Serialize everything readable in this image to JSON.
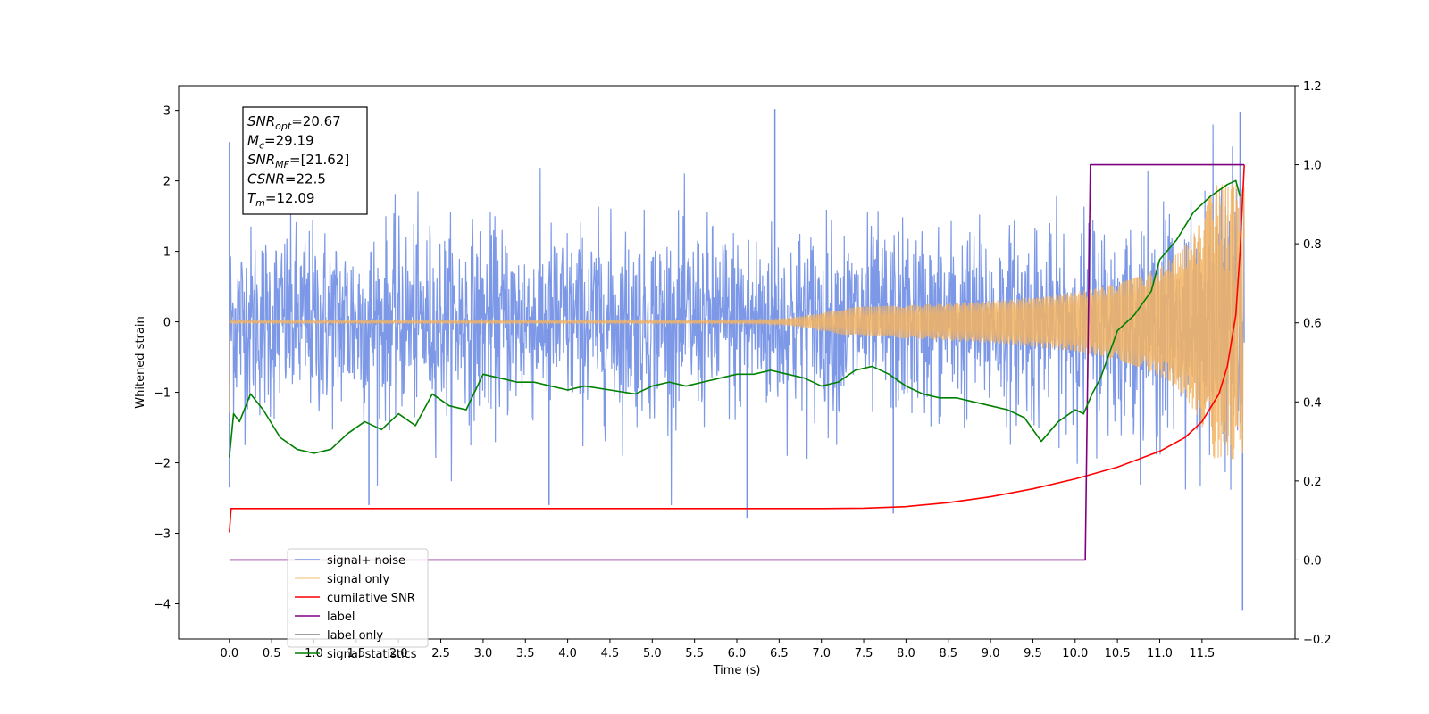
{
  "chart_data": {
    "type": "line",
    "xlabel": "Time (s)",
    "ylabel": "Whitened strain",
    "xlim": [
      -0.6,
      12.6
    ],
    "ylim": [
      -4.5,
      3.35
    ],
    "y2lim": [
      -0.2,
      1.2
    ],
    "x_ticks": [
      "0.0",
      "0.5",
      "1.0",
      "1.5",
      "2.0",
      "2.5",
      "3.0",
      "3.5",
      "4.0",
      "4.5",
      "5.0",
      "5.5",
      "6.0",
      "6.5",
      "7.0",
      "7.5",
      "8.0",
      "8.5",
      "9.0",
      "9.5",
      "10.0",
      "10.5",
      "11.0",
      "11.5"
    ],
    "y_ticks": [
      "−4",
      "−3",
      "−2",
      "−1",
      "0",
      "1",
      "2",
      "3"
    ],
    "y2_ticks": [
      "−0.2",
      "0.0",
      "0.2",
      "0.4",
      "0.6",
      "0.8",
      "1.0",
      "1.2"
    ],
    "legend_position": "lower-left",
    "info_box": {
      "lines": [
        {
          "base": "SNR",
          "sub": "opt",
          "value": "=20.67"
        },
        {
          "base": "M",
          "sub": "c",
          "value": "=29.19"
        },
        {
          "base": "SNR",
          "sub": "MF",
          "value": "=[21.62]"
        },
        {
          "base": "CSNR",
          "sub": "",
          "value": "=22.5"
        },
        {
          "base": "T",
          "sub": "m",
          "value": "=12.09"
        }
      ]
    },
    "series": [
      {
        "name": "signal+ noise",
        "color": "#7592e6",
        "axis": "left",
        "kind": "noise",
        "x_range": [
          0.0,
          12.0
        ],
        "typical_band": [
          -1.4,
          1.4
        ],
        "notable_peaks": [
          [
            0.0,
            2.55
          ],
          [
            0.0,
            -2.35
          ],
          [
            6.45,
            3.02
          ],
          [
            11.95,
            2.98
          ],
          [
            6.12,
            -2.78
          ],
          [
            11.98,
            -4.1
          ],
          [
            1.65,
            -2.6
          ],
          [
            3.78,
            -2.6
          ],
          [
            7.85,
            -2.72
          ]
        ]
      },
      {
        "name": "signal only",
        "color": "#f5b461",
        "axis": "left",
        "kind": "chirp",
        "start_amplitude": 1.3,
        "flat_until": 7.3,
        "merger_time": 11.95,
        "end_time": 12.0,
        "end_amplitude": 1.95
      },
      {
        "name": "cumilative SNR",
        "color": "#ff0000",
        "axis": "right",
        "x": [
          0.0,
          0.02,
          0.05,
          1.0,
          2.0,
          3.0,
          4.0,
          5.0,
          6.0,
          7.0,
          7.5,
          8.0,
          8.5,
          9.0,
          9.5,
          10.0,
          10.5,
          11.0,
          11.3,
          11.5,
          11.7,
          11.8,
          11.9,
          11.95,
          12.0
        ],
        "y": [
          0.07,
          0.13,
          0.13,
          0.13,
          0.13,
          0.13,
          0.13,
          0.13,
          0.13,
          0.13,
          0.131,
          0.135,
          0.145,
          0.16,
          0.18,
          0.205,
          0.235,
          0.275,
          0.31,
          0.35,
          0.42,
          0.49,
          0.62,
          0.78,
          1.0
        ]
      },
      {
        "name": "label",
        "color": "#800080",
        "axis": "right",
        "x": [
          0.0,
          10.12,
          10.18,
          12.0
        ],
        "y": [
          0.0,
          0.0,
          1.0,
          1.0
        ]
      },
      {
        "name": "label only",
        "color": "#808080",
        "axis": "right",
        "hidden_in_plot": true,
        "x": [],
        "y": []
      },
      {
        "name": "signal statistics",
        "color": "#008000",
        "axis": "right",
        "x": [
          0.0,
          0.05,
          0.12,
          0.25,
          0.4,
          0.6,
          0.8,
          1.0,
          1.2,
          1.4,
          1.6,
          1.8,
          2.0,
          2.2,
          2.4,
          2.6,
          2.8,
          3.0,
          3.2,
          3.4,
          3.6,
          3.8,
          4.0,
          4.2,
          4.5,
          4.8,
          5.0,
          5.2,
          5.4,
          5.6,
          5.8,
          6.0,
          6.2,
          6.4,
          6.6,
          6.8,
          7.0,
          7.2,
          7.4,
          7.6,
          7.8,
          8.0,
          8.2,
          8.4,
          8.6,
          8.8,
          9.0,
          9.2,
          9.4,
          9.6,
          9.8,
          10.0,
          10.1,
          10.2,
          10.3,
          10.5,
          10.7,
          10.9,
          11.0,
          11.2,
          11.4,
          11.6,
          11.8,
          11.9,
          11.95
        ],
        "y": [
          0.26,
          0.37,
          0.35,
          0.42,
          0.38,
          0.31,
          0.28,
          0.27,
          0.28,
          0.32,
          0.35,
          0.33,
          0.37,
          0.34,
          0.42,
          0.39,
          0.38,
          0.47,
          0.46,
          0.45,
          0.45,
          0.44,
          0.43,
          0.44,
          0.43,
          0.42,
          0.44,
          0.45,
          0.44,
          0.45,
          0.46,
          0.47,
          0.47,
          0.48,
          0.47,
          0.46,
          0.44,
          0.45,
          0.48,
          0.49,
          0.47,
          0.44,
          0.42,
          0.41,
          0.41,
          0.4,
          0.39,
          0.38,
          0.36,
          0.3,
          0.35,
          0.38,
          0.37,
          0.42,
          0.46,
          0.58,
          0.62,
          0.68,
          0.76,
          0.81,
          0.88,
          0.92,
          0.95,
          0.96,
          0.92
        ]
      }
    ]
  }
}
